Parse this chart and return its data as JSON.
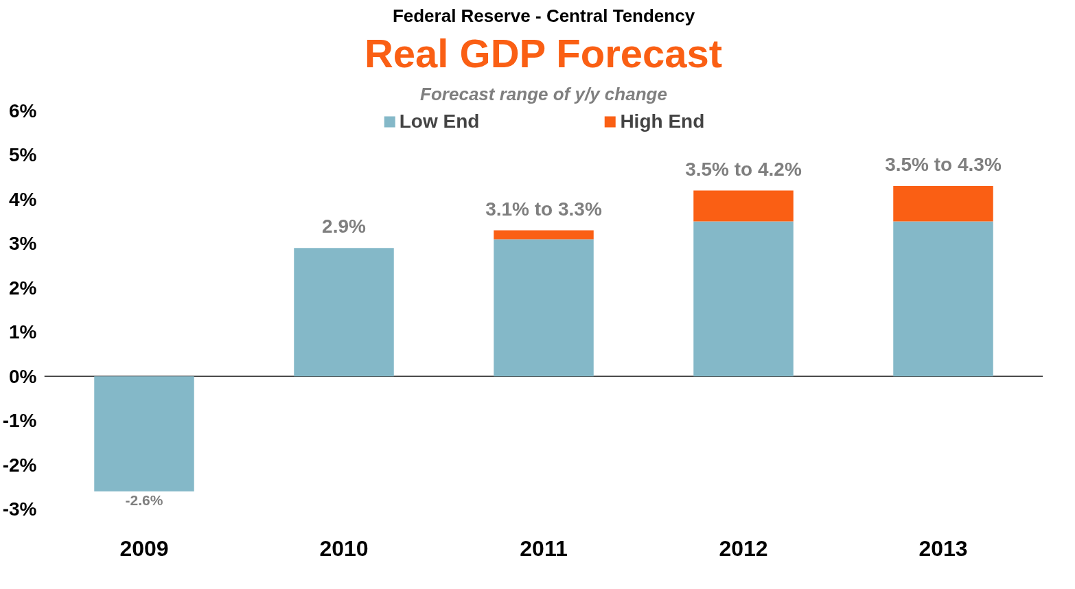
{
  "chart_data": {
    "type": "bar",
    "title": "Real GDP Forecast",
    "subtitle": "Forecast range of y/y change",
    "annotations": [
      "Federal Reserve - Central Tendency"
    ],
    "categories": [
      "2009",
      "2010",
      "2011",
      "2012",
      "2013"
    ],
    "stacked": true,
    "series": [
      {
        "name": "Low End",
        "color": "#84b8c8",
        "values": [
          -2.6,
          2.9,
          3.1,
          3.5,
          3.5
        ]
      },
      {
        "name": "High End",
        "color": "#fa5f14",
        "values": [
          null,
          null,
          0.2,
          0.7,
          0.8
        ]
      }
    ],
    "totals": [
      "-2.6%",
      "2.9%",
      "3.1% to 3.3%",
      "3.5% to 4.2%",
      "3.5% to 4.3%"
    ],
    "ylim": [
      -3,
      6
    ],
    "yticks": [
      {
        "value": -3,
        "label": "-3%"
      },
      {
        "value": -2,
        "label": "-2%"
      },
      {
        "value": -1,
        "label": "-1%"
      },
      {
        "value": 0,
        "label": "0%"
      },
      {
        "value": 1,
        "label": "1%"
      },
      {
        "value": 2,
        "label": "2%"
      },
      {
        "value": 3,
        "label": "3%"
      },
      {
        "value": 4,
        "label": "4%"
      },
      {
        "value": 5,
        "label": "5%"
      },
      {
        "value": 6,
        "label": "6%"
      }
    ],
    "ref_lines": [
      {
        "axis": "y",
        "value": 0,
        "color": "#000000"
      }
    ],
    "grid": false,
    "legend": "top"
  }
}
